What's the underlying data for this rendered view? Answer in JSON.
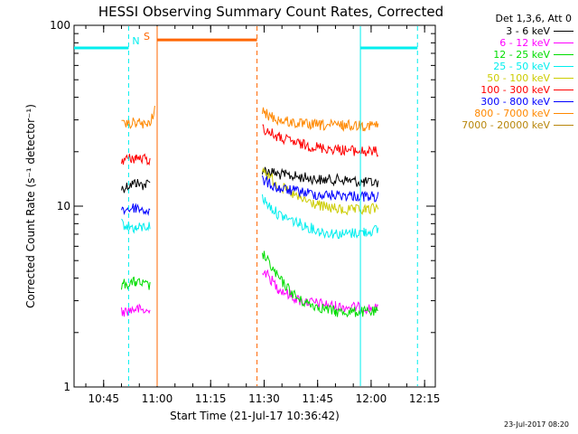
{
  "chart_data": {
    "type": "line",
    "title": "HESSI Observing Summary Count Rates, Corrected",
    "xlabel": "Start Time (21-Jul-17 10:36:42)",
    "ylabel": "Corrected Count Rate (s⁻¹ detector⁻¹)",
    "y_scale": "log",
    "ylim": [
      1,
      100
    ],
    "xlim": [
      "10:36:42",
      "12:18:00"
    ],
    "x_ticks": [
      "10:45",
      "11:00",
      "11:15",
      "11:30",
      "11:45",
      "12:00",
      "12:15"
    ],
    "y_ticks": [
      "1",
      "10",
      "100"
    ],
    "legend_header": "Det 1,3,6, Att 0",
    "legend_position": "right",
    "series": [
      {
        "name": "3 - 6 keV",
        "color": "#000000",
        "segments": [
          {
            "x": [
              "10:50:00",
              "10:52:00",
              "10:54:00",
              "10:56:00",
              "10:58:00"
            ],
            "y": [
              12.5,
              13,
              13.5,
              13,
              13.5
            ]
          },
          {
            "x": [
              "11:29:30",
              "11:34:00",
              "11:40:00",
              "11:46:00",
              "11:52:00",
              "11:58:00",
              "12:02:00"
            ],
            "y": [
              16,
              15,
              14.5,
              14,
              14,
              13.5,
              13.5
            ]
          }
        ]
      },
      {
        "name": "6 - 12 keV",
        "color": "#ff00ff",
        "segments": [
          {
            "x": [
              "10:50:00",
              "10:54:00",
              "10:58:00"
            ],
            "y": [
              2.6,
              2.7,
              2.6
            ]
          },
          {
            "x": [
              "11:29:30",
              "11:34:00",
              "11:40:00",
              "11:50:00",
              "12:02:00"
            ],
            "y": [
              4.5,
              3.5,
              3.0,
              2.8,
              2.7
            ]
          }
        ]
      },
      {
        "name": "12 - 25 keV",
        "color": "#00dd00",
        "segments": [
          {
            "x": [
              "10:50:00",
              "10:54:00",
              "10:58:00"
            ],
            "y": [
              3.7,
              3.8,
              3.6
            ]
          },
          {
            "x": [
              "11:29:30",
              "11:34:00",
              "11:40:00",
              "11:50:00",
              "12:02:00"
            ],
            "y": [
              5.5,
              4.0,
              3.0,
              2.6,
              2.6
            ]
          }
        ]
      },
      {
        "name": "25 - 50 keV",
        "color": "#00eeee",
        "segments": [
          {
            "x": [
              "10:50:00",
              "10:54:00",
              "10:58:00"
            ],
            "y": [
              8.0,
              7.5,
              7.8
            ]
          },
          {
            "x": [
              "11:29:30",
              "11:34:00",
              "11:40:00",
              "11:46:00",
              "11:52:00",
              "11:58:00",
              "12:02:00"
            ],
            "y": [
              11,
              9,
              8,
              7.2,
              7.0,
              7.2,
              7.4
            ]
          }
        ]
      },
      {
        "name": "50 - 100 keV",
        "color": "#cccc00",
        "segments": [
          {
            "x": [
              "11:29:30",
              "11:34:00",
              "11:40:00",
              "11:46:00",
              "11:52:00",
              "11:58:00",
              "12:02:00"
            ],
            "y": [
              16,
              13,
              11,
              10,
              9.5,
              9.5,
              9.8
            ]
          }
        ]
      },
      {
        "name": "100 - 300 keV",
        "color": "#ff0000",
        "segments": [
          {
            "x": [
              "10:50:00",
              "10:54:00",
              "10:58:00"
            ],
            "y": [
              18,
              18.5,
              18
            ]
          },
          {
            "x": [
              "11:29:30",
              "11:34:00",
              "11:40:00",
              "11:46:00",
              "11:52:00",
              "11:58:00",
              "12:02:00"
            ],
            "y": [
              27,
              24,
              22,
              21,
              20.5,
              20,
              20
            ]
          }
        ]
      },
      {
        "name": "300 - 800 keV",
        "color": "#0000ff",
        "segments": [
          {
            "x": [
              "10:50:00",
              "10:54:00",
              "10:58:00"
            ],
            "y": [
              9.5,
              9.8,
              9.3
            ]
          },
          {
            "x": [
              "11:29:30",
              "11:34:00",
              "11:40:00",
              "11:46:00",
              "11:52:00",
              "11:58:00",
              "12:02:00"
            ],
            "y": [
              14,
              12.5,
              12,
              11.5,
              11.5,
              11.3,
              11.3
            ]
          }
        ]
      },
      {
        "name": "800 - 7000 keV",
        "color": "#ff8800",
        "segments": [
          {
            "x": [
              "10:50:00",
              "10:54:00",
              "10:58:00",
              "10:59:20"
            ],
            "y": [
              28,
              29,
              28,
              35
            ]
          },
          {
            "x": [
              "11:29:30",
              "11:34:00",
              "11:40:00",
              "11:46:00",
              "11:52:00",
              "11:58:00",
              "12:02:00"
            ],
            "y": [
              33,
              30,
              28.5,
              28,
              28,
              28,
              28
            ]
          }
        ]
      },
      {
        "name": "7000 - 20000 keV",
        "color": "#b8860b",
        "segments": []
      }
    ],
    "bars": [
      {
        "label": "S",
        "color": "#ff6600",
        "x_start": "11:00:00",
        "x_end": "11:28:00",
        "y": 83
      },
      {
        "label": "",
        "color": "#00eeee",
        "x_start": "10:36:42",
        "x_end": "10:52:00",
        "y": 75
      },
      {
        "label": "",
        "color": "#00eeee",
        "x_start": "11:57:00",
        "x_end": "12:13:00",
        "y": 75
      }
    ],
    "vertical_markers": [
      {
        "label": "N",
        "color": "#00eeee",
        "style": "dashed",
        "x": "10:52:00"
      },
      {
        "label": "",
        "color": "#ff6600",
        "style": "solid",
        "x": "11:00:00"
      },
      {
        "label": "",
        "color": "#ff6600",
        "style": "dashed",
        "x": "11:28:00"
      },
      {
        "label": "",
        "color": "#00eeee",
        "style": "solid",
        "x": "11:57:00"
      },
      {
        "label": "",
        "color": "#00eeee",
        "style": "dashed",
        "x": "12:13:00"
      }
    ]
  },
  "footer": {
    "timestamp": "23-Jul-2017 08:20"
  }
}
